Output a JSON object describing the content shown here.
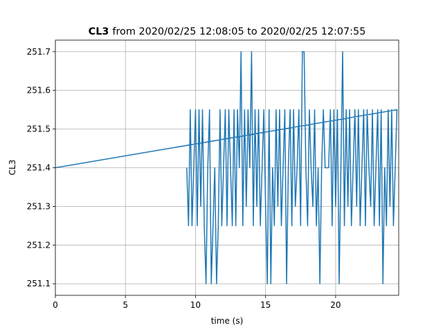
{
  "chart_data": {
    "type": "line",
    "title_bold": "CL3",
    "title": "from 2020/02/25 12:08:05 to 2020/02/25 12:07:55",
    "xlabel": "time (s)",
    "ylabel": "CL3",
    "xlim": [
      0,
      24.5
    ],
    "ylim": [
      251.07,
      251.73
    ],
    "xticks": [
      0,
      5,
      10,
      15,
      20
    ],
    "yticks": [
      251.1,
      251.2,
      251.3,
      251.4,
      251.5,
      251.6,
      251.7
    ],
    "grid": true,
    "series": [
      {
        "color": "#1f77b4",
        "x": [
          9.375,
          9.5,
          9.625,
          9.75,
          9.875,
          10,
          10.125,
          10.25,
          10.375,
          10.5,
          10.625,
          10.75,
          10.875,
          11,
          11.125,
          11.25,
          11.375,
          11.5,
          11.625,
          11.75,
          11.875,
          12,
          12.125,
          12.25,
          12.375,
          12.5,
          12.625,
          12.75,
          12.875,
          13,
          13.125,
          13.25,
          13.375,
          13.5,
          13.625,
          13.75,
          13.875,
          14,
          14.125,
          14.25,
          14.375,
          14.5,
          14.625,
          14.75,
          14.875,
          15,
          15.125,
          15.25,
          15.375,
          15.5,
          15.625,
          15.75,
          15.875,
          16,
          16.125,
          16.25,
          16.375,
          16.5,
          16.625,
          16.75,
          16.875,
          17,
          17.125,
          17.25,
          17.375,
          17.5,
          17.625,
          17.75,
          17.875,
          18,
          18.125,
          18.25,
          18.375,
          18.5,
          18.625,
          18.75,
          18.875,
          19,
          19.125,
          19.25,
          19.375,
          19.5,
          19.625,
          19.75,
          19.875,
          20,
          20.125,
          20.25,
          20.375,
          20.5,
          20.625,
          20.75,
          20.875,
          21,
          21.125,
          21.25,
          21.375,
          21.5,
          21.625,
          21.75,
          21.875,
          22,
          22.125,
          22.25,
          22.375,
          22.5,
          22.625,
          22.75,
          22.875,
          23,
          23.125,
          23.25,
          23.375,
          23.5,
          23.625,
          23.75,
          23.875,
          24,
          24.125,
          24.25,
          24.375,
          0
        ],
        "values": [
          251.4,
          251.25,
          251.55,
          251.25,
          251.4,
          251.55,
          251.25,
          251.55,
          251.3,
          251.55,
          251.25,
          251.1,
          251.4,
          251.55,
          251.1,
          251.25,
          251.4,
          251.1,
          251.25,
          251.55,
          251.25,
          251.4,
          251.55,
          251.25,
          251.55,
          251.4,
          251.25,
          251.55,
          251.25,
          251.55,
          251.4,
          251.7,
          251.25,
          251.55,
          251.3,
          251.55,
          251.4,
          251.7,
          251.25,
          251.55,
          251.3,
          251.55,
          251.25,
          251.4,
          251.55,
          251.3,
          251.1,
          251.55,
          251.1,
          251.4,
          251.25,
          251.55,
          251.3,
          251.55,
          251.25,
          251.4,
          251.55,
          251.1,
          251.4,
          251.55,
          251.25,
          251.55,
          251.3,
          251.4,
          251.55,
          251.25,
          251.7,
          251.7,
          251.4,
          251.25,
          251.55,
          251.4,
          251.3,
          251.55,
          251.25,
          251.4,
          251.1,
          251.4,
          251.55,
          251.4,
          251.4,
          251.4,
          251.55,
          251.25,
          251.55,
          251.3,
          251.55,
          251.1,
          251.4,
          251.7,
          251.25,
          251.55,
          251.3,
          251.55,
          251.25,
          251.4,
          251.55,
          251.3,
          251.55,
          251.25,
          251.4,
          251.55,
          251.25,
          251.55,
          251.4,
          251.3,
          251.55,
          251.25,
          251.4,
          251.55,
          251.25,
          251.55,
          251.1,
          251.4,
          251.25,
          251.55,
          251.3,
          251.55,
          251.25,
          251.4,
          251.55,
          251.4
        ]
      }
    ]
  }
}
